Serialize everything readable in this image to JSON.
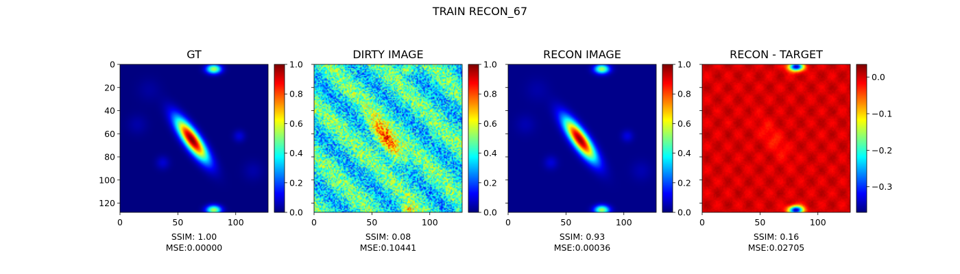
{
  "figure": {
    "suptitle": "TRAIN RECON_67"
  },
  "colormap": "jet",
  "chart_data": [
    {
      "type": "heatmap",
      "title": "GT",
      "image_size": [
        128,
        128
      ],
      "xlim": [
        0,
        128
      ],
      "ylim": [
        128,
        0
      ],
      "x_ticks": [
        0,
        50,
        100
      ],
      "y_ticks": [
        0,
        20,
        40,
        60,
        80,
        100,
        120
      ],
      "show_y_tick_labels": true,
      "colorbar": {
        "min": 0.0,
        "max": 1.0,
        "ticks": [
          0.0,
          0.2,
          0.4,
          0.6,
          0.8,
          1.0
        ],
        "tick_labels": [
          "0.0",
          "0.2",
          "0.4",
          "0.6",
          "0.8",
          "1.0"
        ]
      },
      "ssim_text": "SSIM: 1.00",
      "mse_text": "MSE:0.00000",
      "render": "gt"
    },
    {
      "type": "heatmap",
      "title": "DIRTY IMAGE",
      "image_size": [
        128,
        128
      ],
      "xlim": [
        0,
        128
      ],
      "ylim": [
        128,
        0
      ],
      "x_ticks": [
        0,
        50,
        100
      ],
      "y_ticks": [
        0,
        20,
        40,
        60,
        80,
        100,
        120
      ],
      "show_y_tick_labels": false,
      "colorbar": {
        "min": 0.0,
        "max": 1.0,
        "ticks": [
          0.0,
          0.2,
          0.4,
          0.6,
          0.8,
          1.0
        ],
        "tick_labels": [
          "0.0",
          "0.2",
          "0.4",
          "0.6",
          "0.8",
          "1.0"
        ]
      },
      "ssim_text": "SSIM: 0.08",
      "mse_text": "MSE:0.10441",
      "render": "dirty"
    },
    {
      "type": "heatmap",
      "title": "RECON IMAGE",
      "image_size": [
        128,
        128
      ],
      "xlim": [
        0,
        128
      ],
      "ylim": [
        128,
        0
      ],
      "x_ticks": [
        0,
        50,
        100
      ],
      "y_ticks": [
        0,
        20,
        40,
        60,
        80,
        100,
        120
      ],
      "show_y_tick_labels": false,
      "colorbar": {
        "min": 0.0,
        "max": 1.0,
        "ticks": [
          0.0,
          0.2,
          0.4,
          0.6,
          0.8,
          1.0
        ],
        "tick_labels": [
          "0.0",
          "0.2",
          "0.4",
          "0.6",
          "0.8",
          "1.0"
        ]
      },
      "ssim_text": "SSIM: 0.93",
      "mse_text": "MSE:0.00036",
      "render": "recon"
    },
    {
      "type": "heatmap",
      "title": "RECON - TARGET",
      "image_size": [
        128,
        128
      ],
      "xlim": [
        0,
        128
      ],
      "ylim": [
        128,
        0
      ],
      "x_ticks": [
        0,
        50,
        100
      ],
      "y_ticks": [
        0,
        20,
        40,
        60,
        80,
        100,
        120
      ],
      "show_y_tick_labels": false,
      "colorbar": {
        "min": -0.37,
        "max": 0.035,
        "ticks": [
          -0.3,
          -0.2,
          -0.1,
          0.0
        ],
        "tick_labels": [
          "−0.3",
          "−0.2",
          "−0.1",
          "0.0"
        ]
      },
      "ssim_text": "SSIM: 0.16",
      "mse_text": "MSE:0.02705",
      "render": "diff"
    }
  ]
}
